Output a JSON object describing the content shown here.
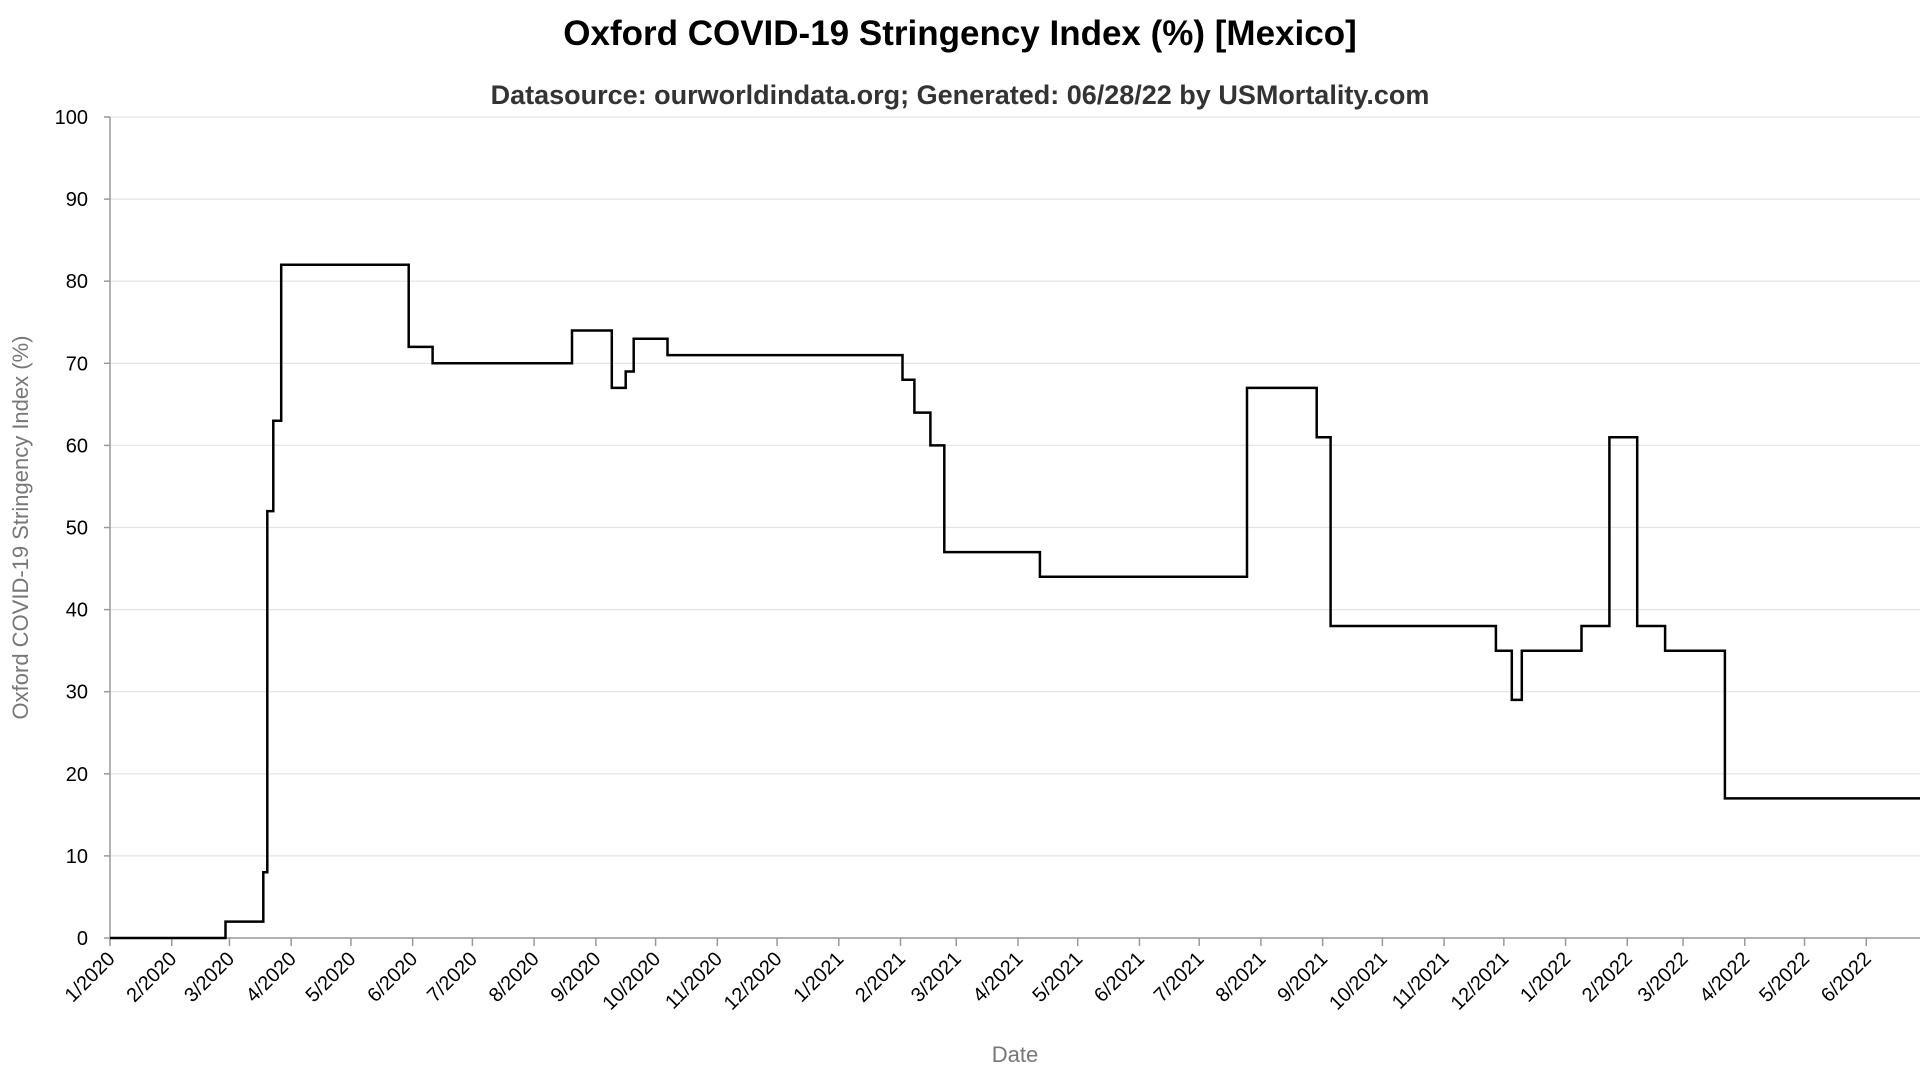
{
  "chart_data": {
    "type": "line",
    "title": "Oxford COVID-19 Stringency Index (%) [Mexico]",
    "subtitle": "Datasource: ourworldindata.org; Generated: 06/28/22 by USMortality.com",
    "xlabel": "Date",
    "ylabel": "Oxford COVID-19 Stringency Index (%)",
    "ylim": [
      0,
      100
    ],
    "xlim": [
      "2020-01-01",
      "2022-06-28"
    ],
    "grid": true,
    "step": true,
    "y_ticks": [
      0,
      10,
      20,
      30,
      40,
      50,
      60,
      70,
      80,
      90,
      100
    ],
    "x_ticks": [
      {
        "date": "2020-01-01",
        "label": "1/2020"
      },
      {
        "date": "2020-02-01",
        "label": "2/2020"
      },
      {
        "date": "2020-03-01",
        "label": "3/2020"
      },
      {
        "date": "2020-04-01",
        "label": "4/2020"
      },
      {
        "date": "2020-05-01",
        "label": "5/2020"
      },
      {
        "date": "2020-06-01",
        "label": "6/2020"
      },
      {
        "date": "2020-07-01",
        "label": "7/2020"
      },
      {
        "date": "2020-08-01",
        "label": "8/2020"
      },
      {
        "date": "2020-09-01",
        "label": "9/2020"
      },
      {
        "date": "2020-10-01",
        "label": "10/2020"
      },
      {
        "date": "2020-11-01",
        "label": "11/2020"
      },
      {
        "date": "2020-12-01",
        "label": "12/2020"
      },
      {
        "date": "2021-01-01",
        "label": "1/2021"
      },
      {
        "date": "2021-02-01",
        "label": "2/2021"
      },
      {
        "date": "2021-03-01",
        "label": "3/2021"
      },
      {
        "date": "2021-04-01",
        "label": "4/2021"
      },
      {
        "date": "2021-05-01",
        "label": "5/2021"
      },
      {
        "date": "2021-06-01",
        "label": "6/2021"
      },
      {
        "date": "2021-07-01",
        "label": "7/2021"
      },
      {
        "date": "2021-08-01",
        "label": "8/2021"
      },
      {
        "date": "2021-09-01",
        "label": "9/2021"
      },
      {
        "date": "2021-10-01",
        "label": "10/2021"
      },
      {
        "date": "2021-11-01",
        "label": "11/2021"
      },
      {
        "date": "2021-12-01",
        "label": "12/2021"
      },
      {
        "date": "2022-01-01",
        "label": "1/2022"
      },
      {
        "date": "2022-02-01",
        "label": "2/2022"
      },
      {
        "date": "2022-03-01",
        "label": "3/2022"
      },
      {
        "date": "2022-04-01",
        "label": "4/2022"
      },
      {
        "date": "2022-05-01",
        "label": "5/2022"
      },
      {
        "date": "2022-06-01",
        "label": "6/2022"
      }
    ],
    "series": [
      {
        "color": "#000000",
        "points": [
          {
            "x": "2020-01-01",
            "y": 0
          },
          {
            "x": "2020-02-28",
            "y": 2
          },
          {
            "x": "2020-03-18",
            "y": 8
          },
          {
            "x": "2020-03-20",
            "y": 52
          },
          {
            "x": "2020-03-23",
            "y": 63
          },
          {
            "x": "2020-03-27",
            "y": 82
          },
          {
            "x": "2020-05-30",
            "y": 72
          },
          {
            "x": "2020-06-11",
            "y": 70
          },
          {
            "x": "2020-08-20",
            "y": 74
          },
          {
            "x": "2020-09-09",
            "y": 67
          },
          {
            "x": "2020-09-16",
            "y": 69
          },
          {
            "x": "2020-09-20",
            "y": 73
          },
          {
            "x": "2020-10-07",
            "y": 71
          },
          {
            "x": "2021-02-02",
            "y": 68
          },
          {
            "x": "2021-02-08",
            "y": 64
          },
          {
            "x": "2021-02-16",
            "y": 60
          },
          {
            "x": "2021-02-23",
            "y": 47
          },
          {
            "x": "2021-04-12",
            "y": 44
          },
          {
            "x": "2021-07-25",
            "y": 67
          },
          {
            "x": "2021-08-29",
            "y": 61
          },
          {
            "x": "2021-09-05",
            "y": 38
          },
          {
            "x": "2021-11-27",
            "y": 35
          },
          {
            "x": "2021-12-05",
            "y": 29
          },
          {
            "x": "2021-12-10",
            "y": 35
          },
          {
            "x": "2022-01-09",
            "y": 38
          },
          {
            "x": "2022-01-23",
            "y": 61
          },
          {
            "x": "2022-02-06",
            "y": 38
          },
          {
            "x": "2022-02-20",
            "y": 35
          },
          {
            "x": "2022-03-22",
            "y": 17
          },
          {
            "x": "2022-06-28",
            "y": 17
          }
        ]
      }
    ]
  }
}
